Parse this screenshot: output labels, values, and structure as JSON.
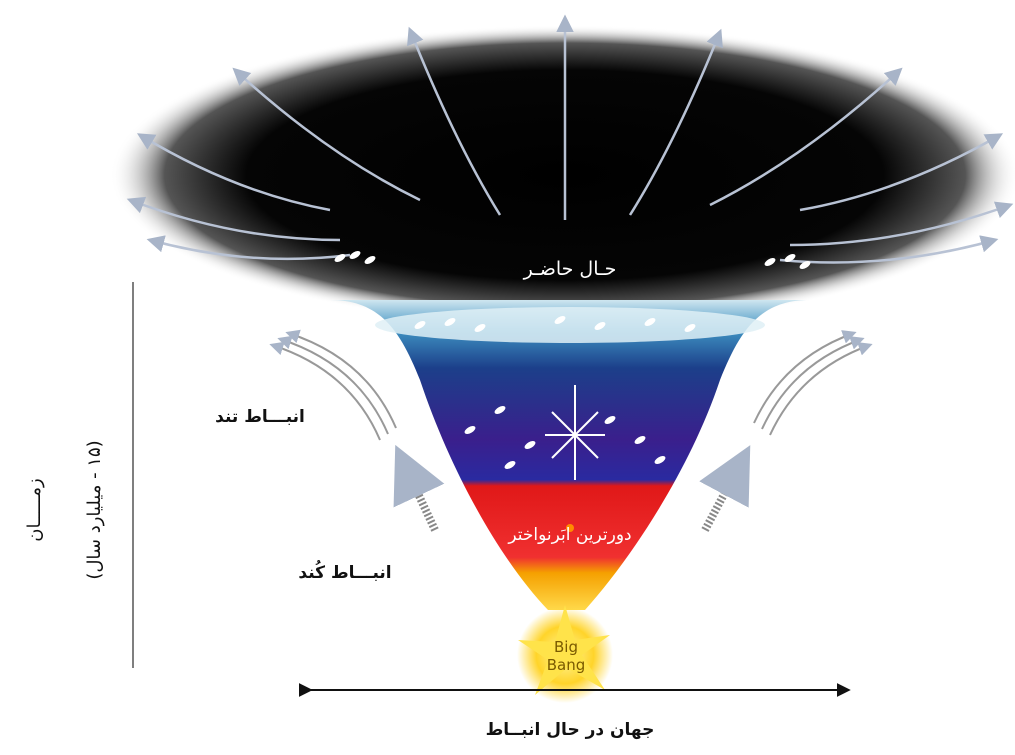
{
  "labels": {
    "present": "حـال حاضـر",
    "fast_expansion": "انبـــاط تند",
    "slow_expansion": "انبـــاط کُند",
    "farthest_supernova": "دورترین ابَرنواختر",
    "big_bang_line1": "Big",
    "big_bang_line2": "Bang",
    "time": "زمـــــان",
    "time_span": "(۱۵ - میلیارد سال)",
    "expanding_universe": "جهان در حال انبــاط"
  }
}
